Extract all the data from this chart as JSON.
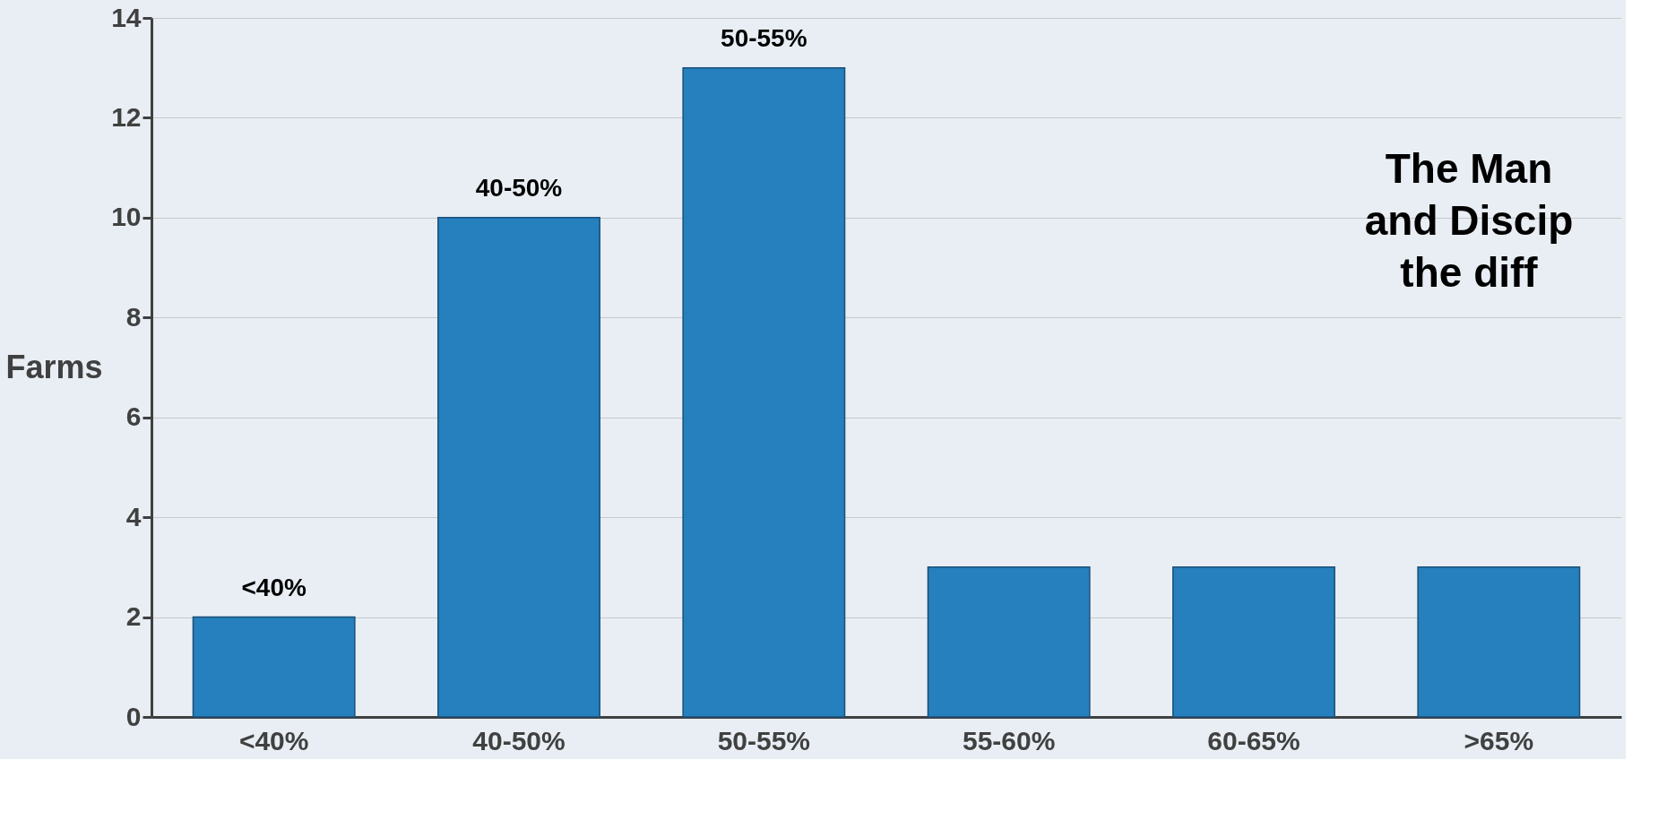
{
  "chart_data": {
    "type": "bar",
    "ylabel": "Farms",
    "categories": [
      "<40%",
      "40-50%",
      "50-55%",
      "55-60%",
      "60-65%",
      ">65%"
    ],
    "values": [
      2,
      10,
      13,
      3,
      3,
      3
    ],
    "color": "#2580bd",
    "ylim": [
      0,
      14
    ],
    "yticks": [
      0,
      2,
      4,
      6,
      8,
      10,
      12,
      14
    ],
    "grid": "y",
    "annotations": [
      {
        "text": "<40%",
        "x": "<40%",
        "y": 2
      },
      {
        "text": "40-50%",
        "x": "40-50%",
        "y": 10
      },
      {
        "text": "50-55%",
        "x": "50-55%",
        "y": 13
      },
      "The Man\nand Discip\nthe diff"
    ]
  }
}
